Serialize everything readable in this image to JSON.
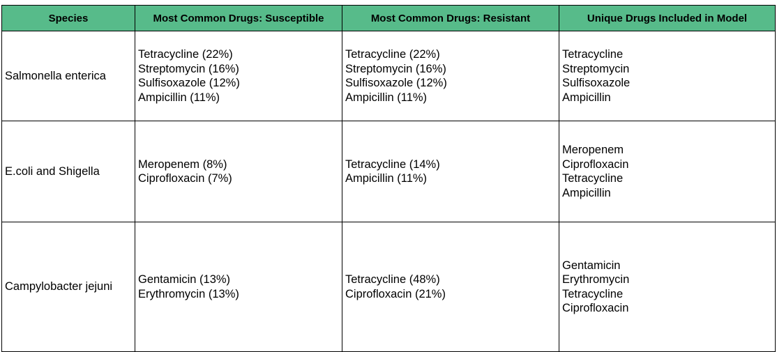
{
  "table": {
    "headers": [
      "Species",
      "Most Common Drugs: Susceptible",
      "Most Common Drugs: Resistant",
      "Unique Drugs Included in Model"
    ],
    "rows": [
      {
        "species": "Salmonella enterica",
        "susceptible": [
          "Tetracycline (22%)",
          "Streptomycin (16%)",
          "Sulfisoxazole (12%)",
          "Ampicillin (11%)"
        ],
        "resistant": [
          "Tetracycline (22%)",
          "Streptomycin (16%)",
          "Sulfisoxazole (12%)",
          "Ampicillin (11%)"
        ],
        "unique": [
          "Tetracycline",
          "Streptomycin",
          "Sulfisoxazole",
          "Ampicillin"
        ]
      },
      {
        "species": "E.coli and Shigella",
        "susceptible": [
          "Meropenem (8%)",
          "Ciprofloxacin (7%)"
        ],
        "resistant": [
          "Tetracycline (14%)",
          "Ampicillin (11%)"
        ],
        "unique": [
          "Meropenem",
          "Ciprofloxacin",
          "Tetracycline",
          "Ampicillin"
        ]
      },
      {
        "species": "Campylobacter jejuni",
        "susceptible": [
          "Gentamicin (13%)",
          "Erythromycin (13%)"
        ],
        "resistant": [
          "Tetracycline (48%)",
          "Ciprofloxacin (21%)"
        ],
        "unique": [
          "Gentamicin",
          "Erythromycin",
          "Tetracycline",
          "Ciprofloxacin"
        ]
      }
    ]
  },
  "colors": {
    "header_bg": "#57bb8a",
    "border": "#000000"
  }
}
